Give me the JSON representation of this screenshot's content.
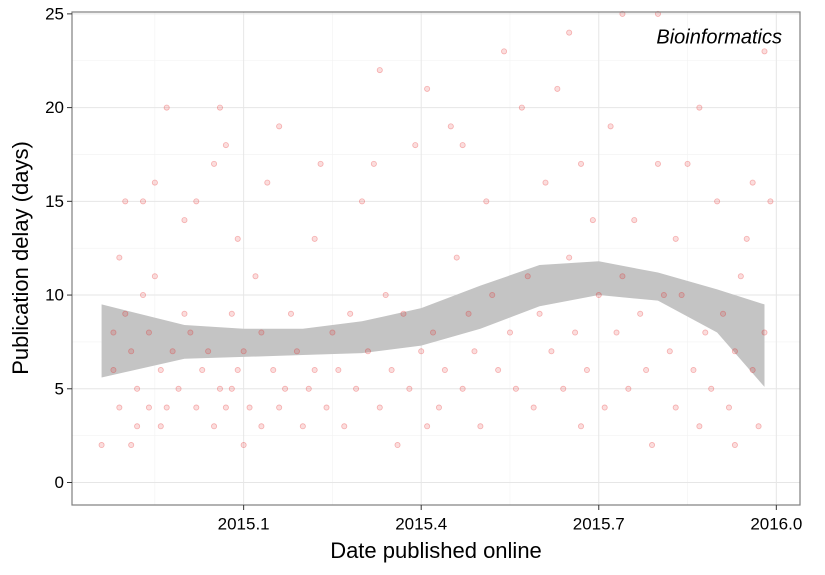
{
  "chart_data": {
    "type": "scatter",
    "annotation": "Bioinformatics",
    "xlabel": "Date published online",
    "ylabel": "Publication delay (days)",
    "xlim": [
      2014.81,
      2016.04
    ],
    "ylim": [
      -1.2,
      25.1
    ],
    "xticks": [
      2015.1,
      2015.4,
      2015.7,
      {
        "value": 2016,
        "label": "2016.0"
      }
    ],
    "yticks": [
      0,
      5,
      10,
      15,
      20,
      25
    ],
    "grid": true,
    "minor_grid": true,
    "series": [
      {
        "color": "#e41a1c",
        "x": [
          2014.86,
          2014.88,
          2014.88,
          2014.89,
          2014.89,
          2014.9,
          2014.9,
          2014.91,
          2014.91,
          2014.92,
          2014.92,
          2014.93,
          2014.93,
          2014.94,
          2014.94,
          2014.95,
          2014.95,
          2014.96,
          2014.96,
          2014.97,
          2014.97,
          2014.98,
          2014.99,
          2015.0,
          2015.0,
          2015.01,
          2015.02,
          2015.02,
          2015.03,
          2015.04,
          2015.05,
          2015.05,
          2015.06,
          2015.06,
          2015.07,
          2015.07,
          2015.08,
          2015.08,
          2015.09,
          2015.09,
          2015.1,
          2015.1,
          2015.11,
          2015.12,
          2015.13,
          2015.13,
          2015.14,
          2015.15,
          2015.16,
          2015.16,
          2015.17,
          2015.18,
          2015.19,
          2015.2,
          2015.21,
          2015.22,
          2015.22,
          2015.23,
          2015.24,
          2015.25,
          2015.26,
          2015.27,
          2015.28,
          2015.29,
          2015.3,
          2015.31,
          2015.32,
          2015.33,
          2015.33,
          2015.34,
          2015.35,
          2015.36,
          2015.37,
          2015.38,
          2015.39,
          2015.4,
          2015.41,
          2015.41,
          2015.42,
          2015.43,
          2015.44,
          2015.45,
          2015.46,
          2015.47,
          2015.47,
          2015.48,
          2015.49,
          2015.5,
          2015.51,
          2015.52,
          2015.53,
          2015.54,
          2015.55,
          2015.56,
          2015.57,
          2015.58,
          2015.59,
          2015.6,
          2015.61,
          2015.62,
          2015.63,
          2015.64,
          2015.65,
          2015.65,
          2015.66,
          2015.67,
          2015.67,
          2015.68,
          2015.69,
          2015.7,
          2015.71,
          2015.72,
          2015.73,
          2015.74,
          2015.74,
          2015.75,
          2015.76,
          2015.77,
          2015.78,
          2015.79,
          2015.8,
          2015.8,
          2015.81,
          2015.82,
          2015.83,
          2015.83,
          2015.84,
          2015.85,
          2015.86,
          2015.87,
          2015.87,
          2015.88,
          2015.89,
          2015.9,
          2015.91,
          2015.92,
          2015.93,
          2015.93,
          2015.94,
          2015.95,
          2015.96,
          2015.96,
          2015.97,
          2015.98,
          2015.98,
          2015.99
        ],
        "values": [
          2,
          8,
          6,
          4,
          12,
          15,
          9,
          2,
          7,
          5,
          3,
          15,
          10,
          8,
          4,
          16,
          11,
          3,
          6,
          20,
          4,
          7,
          5,
          14,
          9,
          8,
          4,
          15,
          6,
          7,
          17,
          3,
          20,
          5,
          18,
          4,
          9,
          5,
          6,
          13,
          2,
          7,
          4,
          11,
          8,
          3,
          16,
          6,
          19,
          4,
          5,
          9,
          7,
          3,
          5,
          13,
          6,
          17,
          4,
          8,
          6,
          3,
          9,
          5,
          15,
          7,
          17,
          22,
          4,
          10,
          6,
          2,
          9,
          5,
          18,
          7,
          21,
          3,
          8,
          4,
          6,
          19,
          12,
          18,
          5,
          9,
          7,
          3,
          15,
          10,
          6,
          23,
          8,
          5,
          20,
          11,
          4,
          9,
          16,
          7,
          21,
          5,
          24,
          12,
          8,
          17,
          3,
          6,
          14,
          10,
          4,
          19,
          8,
          25,
          11,
          5,
          14,
          9,
          6,
          2,
          25,
          17,
          10,
          7,
          13,
          4,
          10,
          17,
          6,
          20,
          3,
          8,
          5,
          15,
          9,
          4,
          7,
          2,
          11,
          13,
          6,
          16,
          3,
          8,
          23,
          15
        ]
      }
    ],
    "smooth": {
      "color": "#c4c4c4",
      "x": [
        2014.86,
        2015.0,
        2015.1,
        2015.2,
        2015.3,
        2015.4,
        2015.5,
        2015.6,
        2015.7,
        2015.8,
        2015.9,
        2015.98
      ],
      "upper": [
        9.5,
        8.4,
        8.2,
        8.2,
        8.6,
        9.3,
        10.5,
        11.6,
        11.8,
        11.2,
        10.3,
        9.5
      ],
      "lower": [
        5.6,
        6.6,
        6.7,
        6.8,
        6.9,
        7.3,
        8.2,
        9.4,
        10.0,
        9.7,
        8.0,
        5.1
      ]
    }
  }
}
